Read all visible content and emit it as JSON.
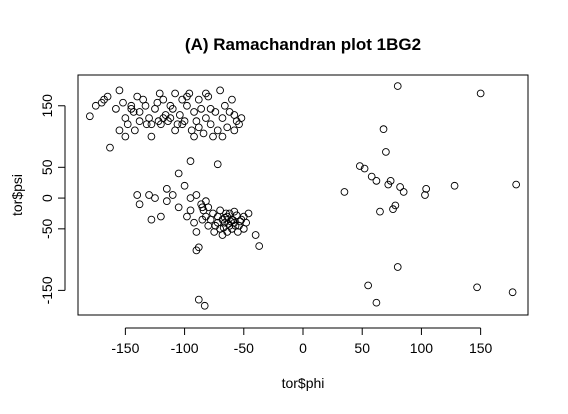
{
  "chart_data": {
    "type": "scatter",
    "title": "(A) Ramachandran plot 1BG2",
    "xlabel": "tor$phi",
    "ylabel": "tor$psi",
    "xlim": [
      -190,
      190
    ],
    "ylim": [
      -190,
      200
    ],
    "xticks": [
      -150,
      -100,
      -50,
      0,
      50,
      100,
      150
    ],
    "yticks": [
      -150,
      -50,
      0,
      50,
      150
    ],
    "marker": "open-circle",
    "marker_color": "#000000",
    "points": [
      [
        -180,
        133
      ],
      [
        -175,
        150
      ],
      [
        -170,
        155
      ],
      [
        -168,
        160
      ],
      [
        -165,
        165
      ],
      [
        -163,
        82
      ],
      [
        -158,
        145
      ],
      [
        -155,
        175
      ],
      [
        -152,
        155
      ],
      [
        -150,
        130
      ],
      [
        -148,
        120
      ],
      [
        -145,
        145
      ],
      [
        -143,
        140
      ],
      [
        -140,
        165
      ],
      [
        -138,
        125
      ],
      [
        -135,
        160
      ],
      [
        -133,
        150
      ],
      [
        -130,
        130
      ],
      [
        -128,
        120
      ],
      [
        -125,
        145
      ],
      [
        -123,
        155
      ],
      [
        -121,
        170
      ],
      [
        -120,
        120
      ],
      [
        -118,
        160
      ],
      [
        -116,
        135
      ],
      [
        -114,
        125
      ],
      [
        -112,
        150
      ],
      [
        -110,
        145
      ],
      [
        -108,
        170
      ],
      [
        -106,
        120
      ],
      [
        -104,
        135
      ],
      [
        -102,
        160
      ],
      [
        -100,
        125
      ],
      [
        -98,
        150
      ],
      [
        -96,
        170
      ],
      [
        -94,
        110
      ],
      [
        -92,
        140
      ],
      [
        -90,
        125
      ],
      [
        -88,
        160
      ],
      [
        -86,
        145
      ],
      [
        -84,
        105
      ],
      [
        -82,
        130
      ],
      [
        -80,
        165
      ],
      [
        -78,
        120
      ],
      [
        -76,
        100
      ],
      [
        -74,
        140
      ],
      [
        -72,
        110
      ],
      [
        -70,
        175
      ],
      [
        -68,
        130
      ],
      [
        -66,
        150
      ],
      [
        -64,
        115
      ],
      [
        -62,
        140
      ],
      [
        -60,
        160
      ],
      [
        -58,
        110
      ],
      [
        -56,
        125
      ],
      [
        -54,
        120
      ],
      [
        -52,
        130
      ],
      [
        -150,
        100
      ],
      [
        -155,
        110
      ],
      [
        -145,
        150
      ],
      [
        -138,
        140
      ],
      [
        -128,
        100
      ],
      [
        -118,
        130
      ],
      [
        -108,
        110
      ],
      [
        -98,
        165
      ],
      [
        -88,
        115
      ],
      [
        -78,
        145
      ],
      [
        -68,
        100
      ],
      [
        -58,
        135
      ],
      [
        -112,
        130
      ],
      [
        -122,
        125
      ],
      [
        -132,
        120
      ],
      [
        -142,
        110
      ],
      [
        -102,
        120
      ],
      [
        -92,
        100
      ],
      [
        -82,
        170
      ],
      [
        -72,
        55
      ],
      [
        -95,
        60
      ],
      [
        -105,
        40
      ],
      [
        -100,
        20
      ],
      [
        -110,
        5
      ],
      [
        -115,
        15
      ],
      [
        -90,
        5
      ],
      [
        -95,
        -20
      ],
      [
        -98,
        -30
      ],
      [
        -92,
        -40
      ],
      [
        -90,
        -55
      ],
      [
        -88,
        -80
      ],
      [
        -86,
        -10
      ],
      [
        -84,
        -20
      ],
      [
        -82,
        -30
      ],
      [
        -80,
        -15
      ],
      [
        -78,
        -35
      ],
      [
        -76,
        -25
      ],
      [
        -74,
        -45
      ],
      [
        -72,
        -30
      ],
      [
        -70,
        -50
      ],
      [
        -68,
        -35
      ],
      [
        -66,
        -40
      ],
      [
        -64,
        -30
      ],
      [
        -62,
        -45
      ],
      [
        -60,
        -35
      ],
      [
        -58,
        -40
      ],
      [
        -56,
        -28
      ],
      [
        -54,
        -45
      ],
      [
        -52,
        -35
      ],
      [
        -50,
        -30
      ],
      [
        -48,
        -40
      ],
      [
        -46,
        -25
      ],
      [
        -70,
        -20
      ],
      [
        -65,
        -25
      ],
      [
        -60,
        -50
      ],
      [
        -55,
        -55
      ],
      [
        -50,
        -50
      ],
      [
        -75,
        -55
      ],
      [
        -80,
        -45
      ],
      [
        -85,
        -35
      ],
      [
        -62,
        -25
      ],
      [
        -58,
        -22
      ],
      [
        -64,
        -55
      ],
      [
        -68,
        -60
      ],
      [
        -72,
        -40
      ],
      [
        -66,
        -32
      ],
      [
        -61,
        -38
      ],
      [
        -63,
        -42
      ],
      [
        -59,
        -36
      ],
      [
        -67,
        -48
      ],
      [
        -57,
        -45
      ],
      [
        -53,
        -38
      ],
      [
        -40,
        -60
      ],
      [
        -37,
        -78
      ],
      [
        -90,
        -85
      ],
      [
        -88,
        -165
      ],
      [
        -83,
        -175
      ],
      [
        -140,
        5
      ],
      [
        -138,
        -10
      ],
      [
        -130,
        5
      ],
      [
        -128,
        -35
      ],
      [
        -125,
        0
      ],
      [
        -120,
        -30
      ],
      [
        -115,
        -5
      ],
      [
        -105,
        -15
      ],
      [
        -95,
        0
      ],
      [
        -85,
        -15
      ],
      [
        -82,
        -5
      ],
      [
        35,
        10
      ],
      [
        48,
        52
      ],
      [
        52,
        48
      ],
      [
        58,
        35
      ],
      [
        62,
        28
      ],
      [
        65,
        -22
      ],
      [
        68,
        112
      ],
      [
        70,
        75
      ],
      [
        72,
        22
      ],
      [
        74,
        28
      ],
      [
        76,
        -18
      ],
      [
        78,
        -12
      ],
      [
        80,
        182
      ],
      [
        80,
        -112
      ],
      [
        82,
        18
      ],
      [
        85,
        10
      ],
      [
        55,
        -142
      ],
      [
        62,
        -170
      ],
      [
        103,
        5
      ],
      [
        104,
        15
      ],
      [
        128,
        20
      ],
      [
        147,
        -145
      ],
      [
        150,
        170
      ],
      [
        177,
        -153
      ],
      [
        180,
        22
      ]
    ]
  }
}
